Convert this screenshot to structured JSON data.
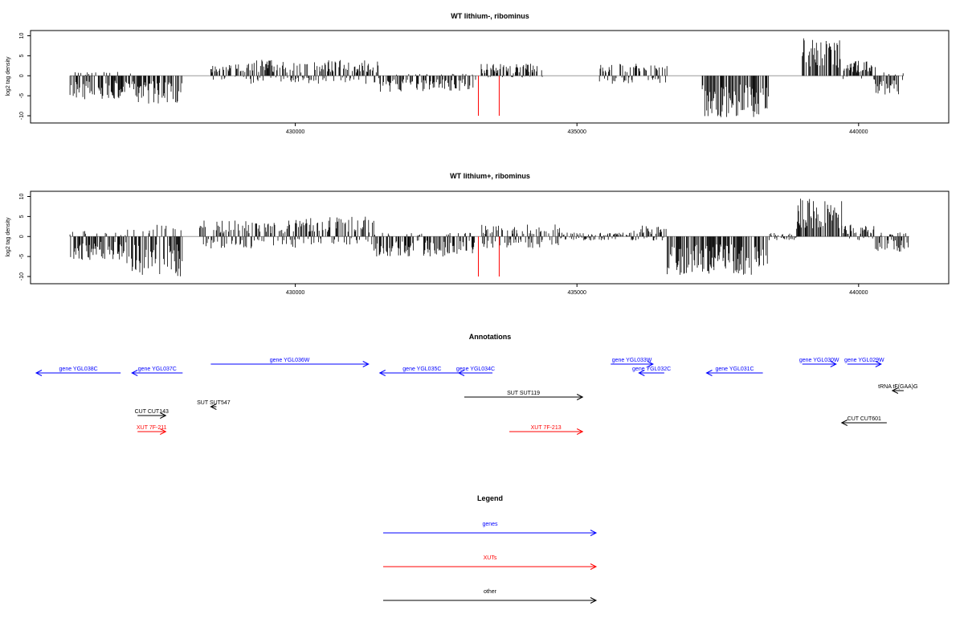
{
  "chart_data": [
    {
      "type": "bar",
      "title": "WT lithium-, ribominus",
      "xlabel": "",
      "ylabel": "log2 tag density",
      "xlim": [
        425300,
        441600
      ],
      "ylim": [
        -11,
        10.5
      ],
      "x_ticks": [
        430000,
        435000,
        440000
      ],
      "y_ticks": [
        -10,
        -5,
        0,
        5,
        10
      ],
      "segments": [
        {
          "from": 426000,
          "to": 427100,
          "lo": -6,
          "hi": 1.0
        },
        {
          "from": 427100,
          "to": 428000,
          "lo": -7,
          "hi": 0
        },
        {
          "from": 428500,
          "to": 429200,
          "lo": -1,
          "hi": 3
        },
        {
          "from": 429200,
          "to": 431500,
          "lo": -2,
          "hi": 4
        },
        {
          "from": 431500,
          "to": 433200,
          "lo": -4,
          "hi": 0.5
        },
        {
          "from": 433300,
          "to": 434400,
          "lo": -0.5,
          "hi": 3
        },
        {
          "from": 435400,
          "to": 436600,
          "lo": -2,
          "hi": 3
        },
        {
          "from": 437200,
          "to": 438400,
          "lo": -10.5,
          "hi": 0
        },
        {
          "from": 439000,
          "to": 439700,
          "lo": 0,
          "hi": 9.5
        },
        {
          "from": 439700,
          "to": 440300,
          "lo": -1,
          "hi": 4
        },
        {
          "from": 440300,
          "to": 440800,
          "lo": -5,
          "hi": 1
        }
      ],
      "highlight": [
        {
          "x": 433250,
          "value": -10
        },
        {
          "x": 433620,
          "value": -10
        }
      ],
      "highlight_color": "#ff0000"
    },
    {
      "type": "bar",
      "title": "WT lithium+, ribominus",
      "xlabel": "",
      "ylabel": "log2 tag density",
      "xlim": [
        425300,
        441600
      ],
      "ylim": [
        -11,
        10.5
      ],
      "x_ticks": [
        430000,
        435000,
        440000
      ],
      "y_ticks": [
        -10,
        -5,
        0,
        5,
        10
      ],
      "segments": [
        {
          "from": 426000,
          "to": 427000,
          "lo": -6,
          "hi": 1.5
        },
        {
          "from": 427000,
          "to": 428000,
          "lo": -10,
          "hi": 3
        },
        {
          "from": 428300,
          "to": 430000,
          "lo": -3,
          "hi": 4
        },
        {
          "from": 430000,
          "to": 431400,
          "lo": -2,
          "hi": 5
        },
        {
          "from": 431400,
          "to": 433200,
          "lo": -5,
          "hi": 1
        },
        {
          "from": 433300,
          "to": 434700,
          "lo": -3,
          "hi": 3
        },
        {
          "from": 434700,
          "to": 436000,
          "lo": -1,
          "hi": 1
        },
        {
          "from": 436000,
          "to": 436600,
          "lo": -1,
          "hi": 3
        },
        {
          "from": 436600,
          "to": 438400,
          "lo": -10,
          "hi": 0
        },
        {
          "from": 438400,
          "to": 438900,
          "lo": -1,
          "hi": 1
        },
        {
          "from": 438900,
          "to": 439700,
          "lo": 0,
          "hi": 9.5
        },
        {
          "from": 439700,
          "to": 440300,
          "lo": -1,
          "hi": 3
        },
        {
          "from": 440300,
          "to": 440900,
          "lo": -4,
          "hi": 1
        }
      ],
      "highlight": [
        {
          "x": 433250,
          "value": -10
        },
        {
          "x": 433620,
          "value": -10
        }
      ],
      "highlight_color": "#ff0000"
    }
  ],
  "annotations": {
    "title": "Annotations",
    "xlim": [
      425300,
      441600
    ],
    "items": [
      {
        "label": "gene YGL038C",
        "start": 425400,
        "end": 426900,
        "strand": "-",
        "row": 1,
        "kind": "gene"
      },
      {
        "label": "gene YGL037C",
        "start": 427100,
        "end": 428000,
        "strand": "-",
        "row": 1,
        "kind": "gene"
      },
      {
        "label": "gene YGL036W",
        "start": 428500,
        "end": 431300,
        "strand": "+",
        "row": 0,
        "kind": "gene"
      },
      {
        "label": "gene YGL035C",
        "start": 431500,
        "end": 433000,
        "strand": "-",
        "row": 1,
        "kind": "gene"
      },
      {
        "label": "gene YGL034C",
        "start": 432900,
        "end": 433500,
        "strand": "-",
        "row": 1,
        "kind": "gene"
      },
      {
        "label": "gene YGL033W",
        "start": 435600,
        "end": 436350,
        "strand": "+",
        "row": 0,
        "kind": "gene"
      },
      {
        "label": "gene YGL032C",
        "start": 436100,
        "end": 436550,
        "strand": "-",
        "row": 1,
        "kind": "gene"
      },
      {
        "label": "gene YGL031C",
        "start": 437300,
        "end": 438300,
        "strand": "-",
        "row": 1,
        "kind": "gene"
      },
      {
        "label": "gene YGL030W",
        "start": 439000,
        "end": 439600,
        "strand": "+",
        "row": 0,
        "kind": "gene"
      },
      {
        "label": "gene YGL029W",
        "start": 439800,
        "end": 440400,
        "strand": "+",
        "row": 0,
        "kind": "gene"
      },
      {
        "label": "tRNA tF(GAA)G",
        "start": 440600,
        "end": 440800,
        "strand": "-",
        "row": 2,
        "kind": "other"
      },
      {
        "label": "SUT SUT119",
        "start": 433000,
        "end": 435100,
        "strand": "+",
        "row": 3,
        "kind": "other"
      },
      {
        "label": "SUT SUT547",
        "start": 428500,
        "end": 428600,
        "strand": "-",
        "row": 4,
        "kind": "other"
      },
      {
        "label": "CUT CUT143",
        "start": 427200,
        "end": 427700,
        "strand": "+",
        "row": 5,
        "kind": "other"
      },
      {
        "label": "CUT CUT601",
        "start": 439700,
        "end": 440500,
        "strand": "-",
        "row": 6,
        "kind": "other"
      },
      {
        "label": "XUT 7F-211",
        "start": 427200,
        "end": 427700,
        "strand": "+",
        "row": 7,
        "kind": "xut"
      },
      {
        "label": "XUT 7F-213",
        "start": 433800,
        "end": 435100,
        "strand": "+",
        "row": 7,
        "kind": "xut"
      }
    ]
  },
  "legend": {
    "title": "Legend",
    "items": [
      {
        "label": "genes",
        "kind": "gene"
      },
      {
        "label": "XUTs",
        "kind": "xut"
      },
      {
        "label": "other",
        "kind": "other"
      }
    ]
  },
  "colors": {
    "gene": "#0000ff",
    "xut": "#ff0000",
    "other": "#000000",
    "bars": "#000000",
    "zero_line": "#999999"
  }
}
